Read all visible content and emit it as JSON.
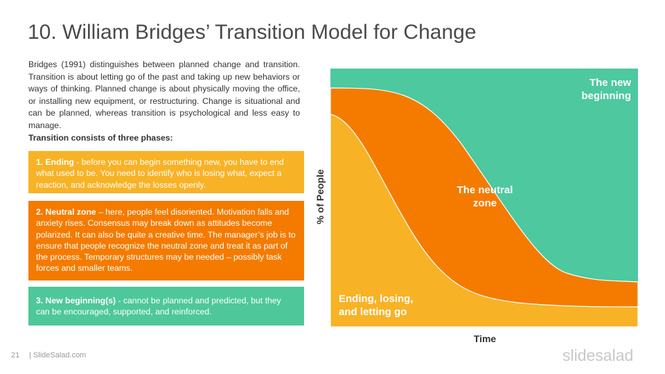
{
  "header": {
    "title": "10. William Bridges’ Transition Model for Change"
  },
  "intro": {
    "text": "Bridges (1991) distinguishes between planned change and transition. Transition is about letting go of the past and taking up new behaviors or ways of thinking. Planned change is about physically moving the office, or installing new equipment, or restructuring. Change is situational and can be planned, whereas transition is psychological and less easy to manage.",
    "lead": "Transition consists of three phases:"
  },
  "phases": [
    {
      "label": "1.  Ending",
      "text": " - before you can begin something new, you have to end what used to be. You need to identify who is losing what, expect a reaction, and acknowledge the losses openly."
    },
    {
      "label": "2.  Neutral zone",
      "text": " – here, people feel disoriented. Motivation falls and anxiety rises. Consensus may break down as attitudes become polarized. It can also be quite a creative time. The manager’s job is to ensure that people recognize the neutral zone and treat it as part of the process. Temporary structures may be needed – possibly task forces and smaller teams."
    },
    {
      "label": "3.  New beginning(s)",
      "text": " - cannot be planned and predicted, but they can be encouraged, supported, and reinforced."
    }
  ],
  "diagram": {
    "y_label": "% of People",
    "x_label": "Time",
    "regions": [
      "The new beginning",
      "The neutral zone",
      "Ending, losing, and letting go"
    ]
  },
  "footer": {
    "page": "21",
    "site": "| SlideSalad.com",
    "logo": "slidesalad"
  }
}
